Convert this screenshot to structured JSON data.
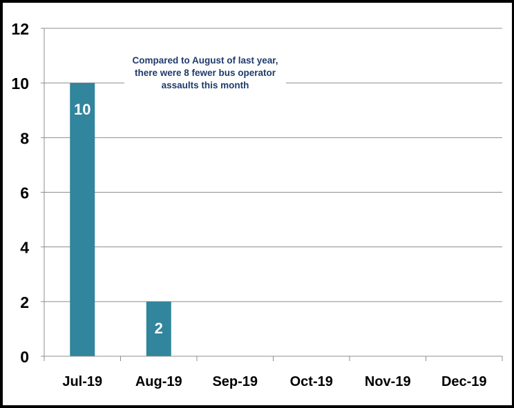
{
  "chart_data": {
    "type": "bar",
    "title": "",
    "xlabel": "",
    "ylabel": "",
    "categories": [
      "Jul-19",
      "Aug-19",
      "Sep-19",
      "Oct-19",
      "Nov-19",
      "Dec-19"
    ],
    "series": [
      {
        "values": [
          10,
          2,
          null,
          null,
          null,
          null
        ],
        "data_labels": [
          "10",
          "2",
          "",
          "",
          "",
          ""
        ],
        "color": "#31859c"
      }
    ],
    "ylim": [
      0,
      12
    ],
    "yticks": [
      0,
      2,
      4,
      6,
      8,
      10,
      12
    ],
    "ytick_labels": [
      "0",
      "2",
      "4",
      "6",
      "8",
      "10",
      "12"
    ],
    "grid": true,
    "legend": "none",
    "annotation": "Compared to August of last year, there were 8 fewer bus operator assaults this month"
  },
  "colors": {
    "bar": "#31859c",
    "gridline": "#8c8c8c",
    "annotation_text": "#1f3a6b",
    "border": "#000000"
  }
}
